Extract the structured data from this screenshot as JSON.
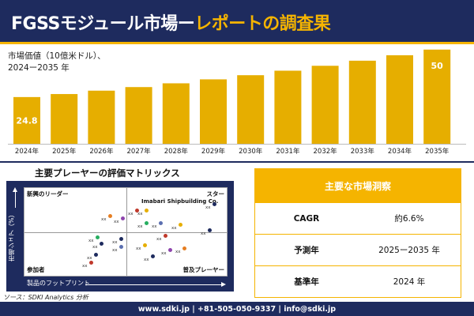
{
  "header": {
    "title_white": "FGSSモジュール市場ー",
    "title_yellow": "レポートの調査果"
  },
  "subtitle": {
    "line1": "市場価値（10億米ドル）、",
    "line2": "2024ー2035 年"
  },
  "colors": {
    "navy": "#1e2b5e",
    "gold": "#f5b400",
    "bar": "#e6ae00"
  },
  "chart_data": {
    "type": "bar",
    "categories": [
      "2024年",
      "2025年",
      "2026年",
      "2027年",
      "2028年",
      "2029年",
      "2030年",
      "2031年",
      "2032年",
      "2033年",
      "2034年",
      "2035年"
    ],
    "values": [
      24.8,
      26.4,
      28.2,
      30.1,
      32.1,
      34.2,
      36.4,
      38.8,
      41.4,
      44.1,
      47.0,
      50
    ],
    "data_labels": {
      "0": "24.8",
      "11": "50"
    },
    "ylim": [
      0,
      52
    ],
    "grid": false,
    "legend": "none"
  },
  "matrix": {
    "title": "主要プレーヤーの評価マトリックス",
    "quadrants": {
      "top_left": "新興のリーダー",
      "top_right": "スター",
      "bottom_left": "参加者",
      "bottom_right": "普及プレーヤー"
    },
    "y_axis_label": "市場シェア（%）",
    "x_axis_label": "製品のフットプリント",
    "highlight": "Imabari Shipbuilding Co.",
    "point_label": "xx"
  },
  "source": "ソース：SDKI Analytics 分析",
  "insights": {
    "title": "主要な市場洞察",
    "rows": [
      {
        "key": "CAGR",
        "value": "約6.6%"
      },
      {
        "key": "予測年",
        "value": "2025ー2035 年"
      },
      {
        "key": "基準年",
        "value": "2024 年"
      }
    ]
  },
  "footer": "www.sdki.jp | +81-505-050-9337 | info@sdki.jp"
}
